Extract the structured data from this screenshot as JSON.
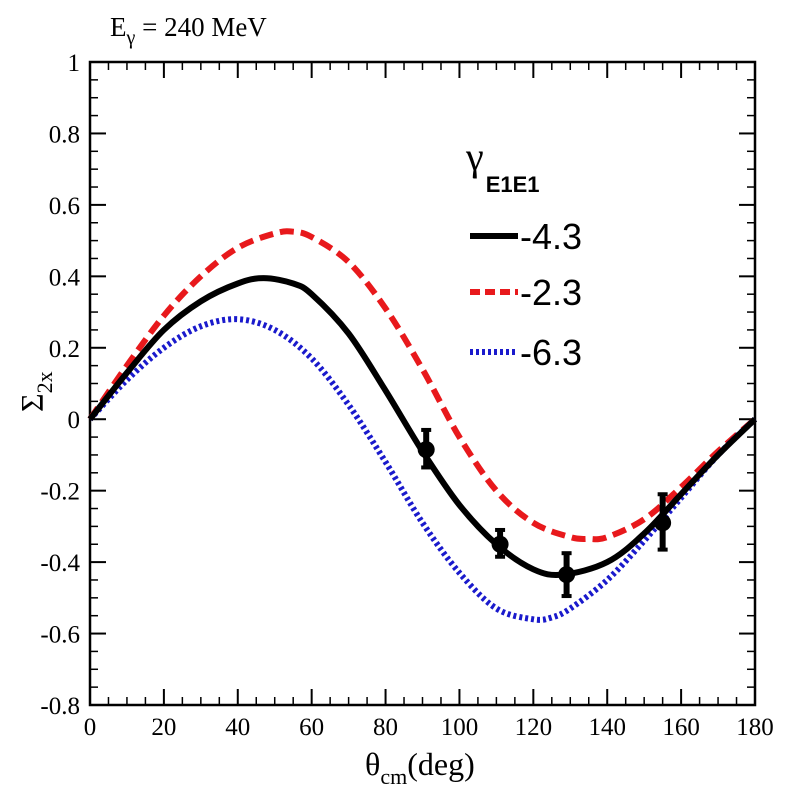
{
  "chart_data": {
    "type": "line",
    "title": "E",
    "title_sub": "γ",
    "title_rest": " = 240 MeV",
    "xlabel": "θ",
    "xlabel_sub": "cm",
    "xlabel_rest": "(deg)",
    "ylabel": "Σ",
    "ylabel_sub": "2x",
    "xlim": [
      0,
      180
    ],
    "ylim": [
      -0.8,
      1
    ],
    "xticks": [
      0,
      20,
      40,
      60,
      80,
      100,
      120,
      140,
      160,
      180
    ],
    "xtick_labels": [
      "0",
      "20",
      "40",
      "60",
      "80",
      "100",
      "120",
      "140",
      "160",
      "180"
    ],
    "yticks": [
      -0.8,
      -0.6,
      -0.4,
      -0.2,
      0,
      0.2,
      0.4,
      0.6,
      0.8,
      1
    ],
    "ytick_labels": [
      "-0.8",
      "-0.6",
      "-0.4",
      "-0.2",
      "0",
      "0.2",
      "0.4",
      "0.6",
      "0.8",
      "1"
    ],
    "legend_title": "γ",
    "legend_title_sub": "E1E1",
    "legend_position": "top-right",
    "series": [
      {
        "name": "-4.3",
        "color": "#000000",
        "style": "solid",
        "x": [
          0,
          10,
          20,
          30,
          40,
          47,
          55,
          60,
          70,
          80,
          90,
          100,
          110,
          120,
          128,
          140,
          150,
          160,
          170,
          180
        ],
        "y": [
          0,
          0.13,
          0.25,
          0.33,
          0.38,
          0.395,
          0.38,
          0.35,
          0.24,
          0.08,
          -0.09,
          -0.24,
          -0.35,
          -0.42,
          -0.435,
          -0.4,
          -0.32,
          -0.21,
          -0.1,
          0
        ]
      },
      {
        "name": "-2.3",
        "color": "#e8191c",
        "style": "dashed",
        "x": [
          0,
          10,
          20,
          30,
          40,
          50,
          55,
          60,
          70,
          80,
          90,
          100,
          110,
          120,
          130,
          135,
          140,
          150,
          160,
          170,
          180
        ],
        "y": [
          0,
          0.15,
          0.29,
          0.4,
          0.48,
          0.52,
          0.525,
          0.51,
          0.44,
          0.31,
          0.14,
          -0.05,
          -0.2,
          -0.29,
          -0.33,
          -0.335,
          -0.33,
          -0.28,
          -0.19,
          -0.09,
          0
        ]
      },
      {
        "name": "-6.3",
        "color": "#1a1acc",
        "style": "dotted",
        "x": [
          0,
          10,
          20,
          30,
          40,
          50,
          60,
          70,
          80,
          90,
          100,
          110,
          120,
          125,
          130,
          140,
          150,
          160,
          170,
          180
        ],
        "y": [
          0,
          0.11,
          0.2,
          0.26,
          0.28,
          0.25,
          0.17,
          0.04,
          -0.12,
          -0.29,
          -0.43,
          -0.53,
          -0.56,
          -0.555,
          -0.53,
          -0.45,
          -0.34,
          -0.22,
          -0.1,
          0
        ]
      }
    ],
    "data_points": {
      "name": "data",
      "x": [
        91,
        111,
        129,
        155
      ],
      "y": [
        -0.085,
        -0.35,
        -0.435,
        -0.29
      ],
      "yerr_low": [
        0.05,
        0.035,
        0.06,
        0.075
      ],
      "yerr_high": [
        0.055,
        0.04,
        0.06,
        0.08
      ]
    }
  }
}
